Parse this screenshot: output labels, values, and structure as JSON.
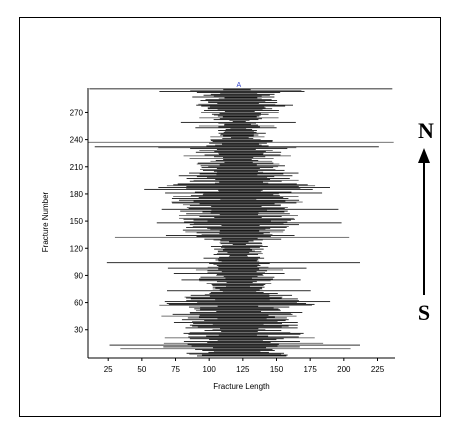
{
  "chart_data": {
    "type": "bar",
    "orientation": "horizontal",
    "xlabel": "Fracture Length",
    "ylabel": "Fracture Number",
    "xlim": [
      10,
      238
    ],
    "ylim": [
      1,
      297
    ],
    "x_ticks": [
      25,
      50,
      75,
      100,
      125,
      150,
      175,
      200,
      225
    ],
    "y_ticks": [
      30,
      60,
      90,
      120,
      150,
      180,
      210,
      240,
      270
    ],
    "center": 122,
    "top_marker": "A",
    "direction_labels": {
      "north": "N",
      "south": "S"
    },
    "n_fractures": 296,
    "bar_color": "#000000",
    "alt_bar_color": "#555555",
    "long_bars": [
      {
        "number": 296,
        "from": 11,
        "to": 236
      },
      {
        "number": 237,
        "from": 10,
        "to": 237
      },
      {
        "number": 232,
        "from": 15,
        "to": 226
      },
      {
        "number": 104,
        "from": 24,
        "to": 212
      },
      {
        "number": 13,
        "from": 26,
        "to": 212
      },
      {
        "number": 9,
        "from": 34,
        "to": 205
      },
      {
        "number": 132,
        "from": 30,
        "to": 204
      }
    ]
  }
}
